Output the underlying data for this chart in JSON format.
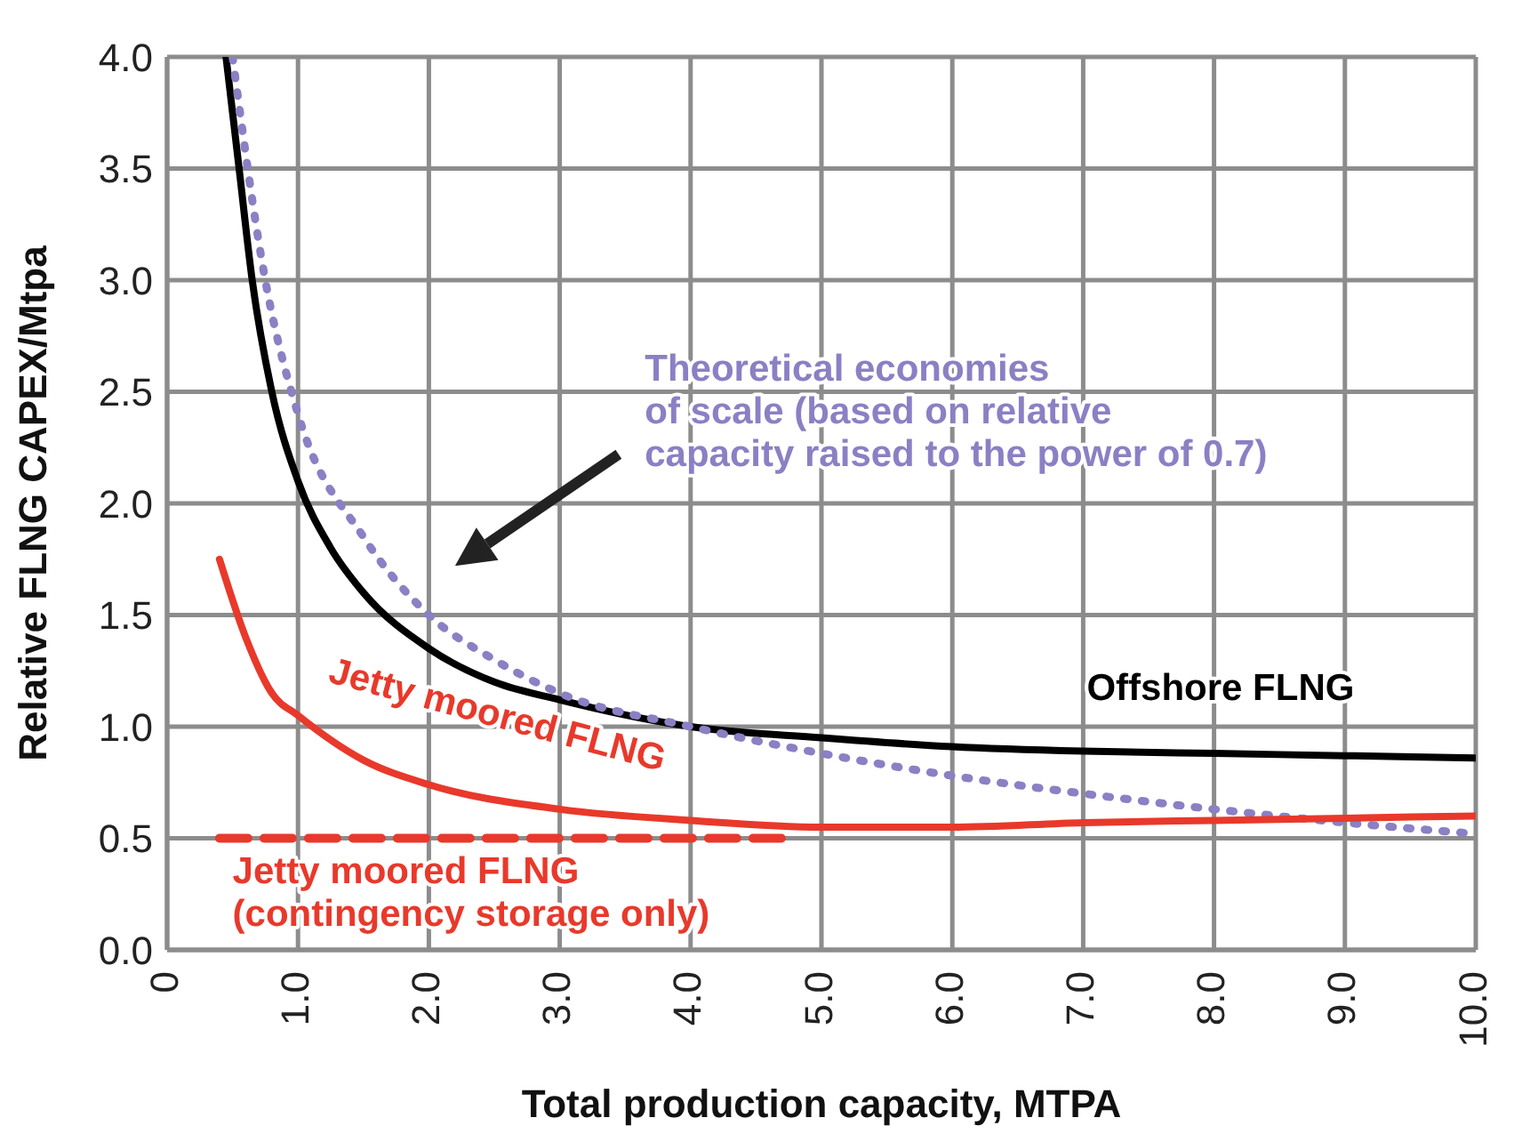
{
  "chart_data": {
    "type": "line",
    "xlabel": "Total production capacity, MTPA",
    "ylabel": "Relative FLNG CAPEX/Mtpa",
    "xlim": [
      0,
      10
    ],
    "ylim": [
      0,
      4
    ],
    "xticks": [
      0,
      {
        "value": 1,
        "label": "1.0"
      },
      {
        "value": 2,
        "label": "2.0"
      },
      {
        "value": 3,
        "label": "3.0"
      },
      {
        "value": 4,
        "label": "4.0"
      },
      {
        "value": 5,
        "label": "5.0"
      },
      {
        "value": 6,
        "label": "6.0"
      },
      {
        "value": 7,
        "label": "7.0"
      },
      {
        "value": 8,
        "label": "8.0"
      },
      {
        "value": 9,
        "label": "9.0"
      },
      {
        "value": 10,
        "label": "10.0"
      }
    ],
    "yticks": [
      {
        "value": 0,
        "label": "0.0"
      },
      {
        "value": 0.5,
        "label": "0.5"
      },
      {
        "value": 1,
        "label": "1.0"
      },
      {
        "value": 1.5,
        "label": "1.5"
      },
      {
        "value": 2,
        "label": "2.0"
      },
      {
        "value": 2.5,
        "label": "2.5"
      },
      {
        "value": 3,
        "label": "3.0"
      },
      {
        "value": 3.5,
        "label": "3.5"
      },
      {
        "value": 4,
        "label": "4.0"
      }
    ],
    "grid": true,
    "legend": false,
    "marker": "none",
    "series": [
      {
        "name": "Offshore FLNG",
        "color": "#000000",
        "line_style": "solid",
        "x": [
          0.45,
          0.55,
          0.65,
          0.8,
          1.0,
          1.25,
          1.5,
          2.0,
          2.5,
          3.0,
          4.0,
          5.0,
          6.0,
          7.0,
          8.0,
          9.0,
          10.0
        ],
        "values": [
          4.0,
          3.5,
          3.0,
          2.5,
          2.1,
          1.8,
          1.6,
          1.35,
          1.2,
          1.12,
          1.0,
          0.95,
          0.91,
          0.89,
          0.88,
          0.87,
          0.86
        ]
      },
      {
        "name": "Theoretical economies\nof scale (based on relative\ncapacity raised to the power of 0.7)",
        "color": "#8a80c4",
        "line_style": "dotted",
        "x": [
          0.5,
          0.75,
          1.0,
          1.5,
          2.0,
          2.5,
          3.0,
          4.0,
          5.0,
          6.0,
          7.0,
          8.0,
          9.0,
          10.0
        ],
        "values": [
          4.0,
          3.0,
          2.4,
          1.85,
          1.5,
          1.3,
          1.15,
          1.0,
          0.88,
          0.78,
          0.7,
          0.63,
          0.57,
          0.52
        ]
      },
      {
        "name": "Jetty moored FLNG",
        "color": "#e8392b",
        "line_style": "solid",
        "x": [
          0.4,
          0.6,
          0.8,
          1.0,
          1.5,
          2.0,
          3.0,
          4.0,
          5.0,
          6.0,
          7.0,
          8.0,
          9.0,
          10.0
        ],
        "values": [
          1.75,
          1.4,
          1.15,
          1.05,
          0.85,
          0.74,
          0.63,
          0.58,
          0.55,
          0.55,
          0.57,
          0.58,
          0.59,
          0.6
        ]
      },
      {
        "name": "Jetty moored FLNG\n(contingency storage only)",
        "color": "#e8392b",
        "line_style": "dashed",
        "x": [
          0.4,
          4.7
        ],
        "values": [
          0.5,
          0.5
        ]
      }
    ]
  }
}
